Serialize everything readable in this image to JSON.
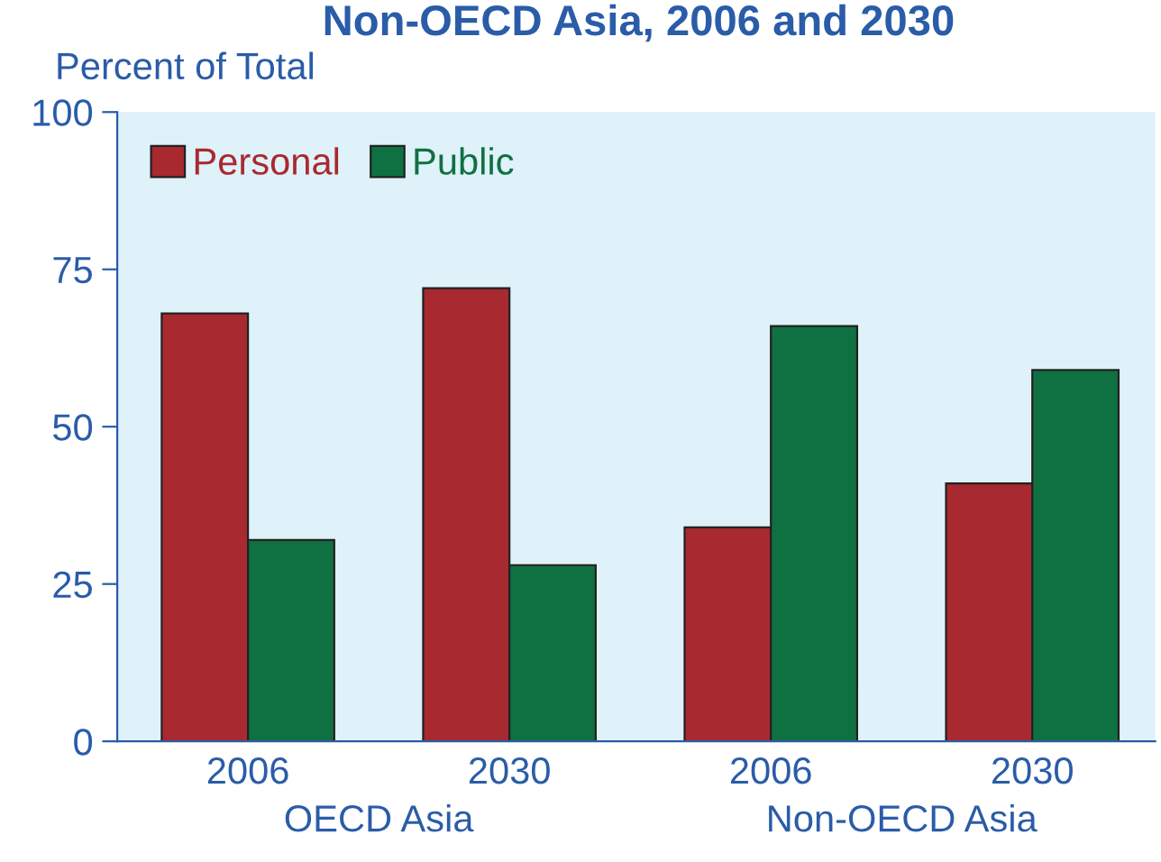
{
  "chart_data": {
    "type": "bar",
    "title": "Non-OECD Asia, 2006 and 2030",
    "ylabel": "Percent of Total",
    "categories": [
      "2006",
      "2030",
      "2006",
      "2030"
    ],
    "series": [
      {
        "name": "Personal",
        "color": "#a8292f",
        "values": [
          68,
          72,
          34,
          41
        ]
      },
      {
        "name": "Public",
        "color": "#0f7142",
        "values": [
          32,
          28,
          66,
          59
        ]
      }
    ],
    "annotations": [
      "OECD Asia",
      "Non-OECD Asia"
    ],
    "ylim": [
      0,
      100
    ],
    "yticks": [
      0,
      25,
      50,
      75,
      100
    ],
    "grid": false,
    "legend": "top left"
  }
}
